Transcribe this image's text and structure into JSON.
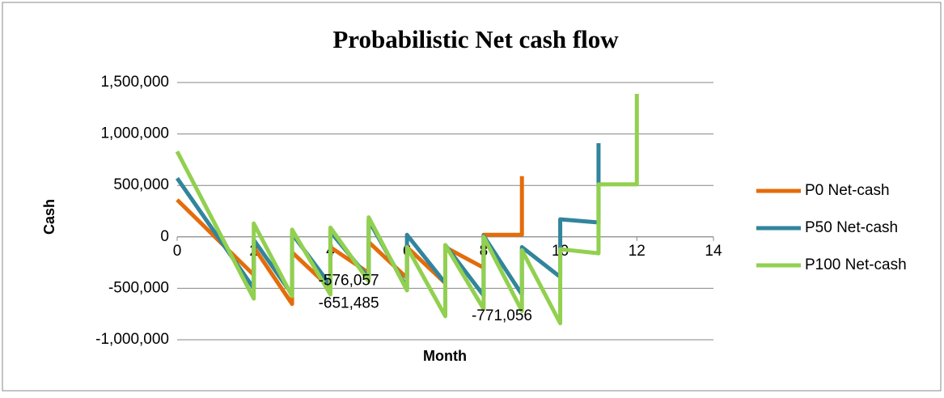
{
  "chart_data": {
    "type": "line",
    "title": "Probabilistic Net cash flow",
    "x_label": "Month",
    "y_label": "Cash",
    "xlim": [
      0,
      14
    ],
    "xticks": [
      0,
      2,
      4,
      6,
      8,
      10,
      12,
      14
    ],
    "ylim": [
      -1000000,
      1500000
    ],
    "yticks": [
      {
        "value": -1000000,
        "label": "-1,000,000"
      },
      {
        "value": -500000,
        "label": "-500,000"
      },
      0,
      {
        "value": 500000,
        "label": "500,000"
      },
      {
        "value": 1000000,
        "label": "1,000,000"
      },
      {
        "value": 1500000,
        "label": "1,500,000"
      }
    ],
    "grid": true,
    "legend": "right",
    "series": [
      {
        "name": "P0 Net-cash",
        "color": "#e46c0a",
        "x": [
          0,
          2,
          2,
          3,
          3,
          4,
          4,
          5,
          5,
          6,
          6,
          7,
          7,
          8,
          8,
          9,
          9
        ],
        "values": [
          360000,
          -370000,
          -100000,
          -651485,
          -150000,
          -500000,
          -100000,
          -350000,
          -50000,
          -400000,
          -100000,
          -450000,
          -100000,
          -300000,
          20000,
          20000,
          590000
        ],
        "value_labels": [
          null,
          null,
          null,
          "-651,485",
          null,
          null,
          null,
          null,
          null,
          null,
          null,
          null,
          null,
          null,
          null,
          null,
          null
        ]
      },
      {
        "name": "P50 Net-cash",
        "color": "#31859c",
        "x": [
          0,
          2,
          2,
          3,
          3,
          4,
          4,
          5,
          5,
          6,
          6,
          7,
          7,
          8,
          8,
          9,
          9,
          10,
          10,
          11,
          11
        ],
        "values": [
          570000,
          -500000,
          -30000,
          -560000,
          30000,
          -470000,
          50000,
          -400000,
          160000,
          -500000,
          20000,
          -450000,
          -80000,
          -570000,
          10000,
          -560000,
          -100000,
          -390000,
          170000,
          140000,
          910000
        ]
      },
      {
        "name": "P100 Net-cash",
        "color": "#92d050",
        "x": [
          0,
          2,
          2,
          3,
          3,
          4,
          4,
          5,
          5,
          6,
          6,
          7,
          7,
          8,
          8,
          9,
          9,
          10,
          10,
          11,
          11,
          12,
          12
        ],
        "values": [
          830000,
          -600000,
          130000,
          -576057,
          70000,
          -560000,
          90000,
          -430000,
          190000,
          -520000,
          -100000,
          -771056,
          -80000,
          -700000,
          0,
          -720000,
          -130000,
          -840000,
          -120000,
          -160000,
          510000,
          510000,
          1390000
        ],
        "value_labels": [
          null,
          null,
          null,
          "-576,057",
          null,
          null,
          null,
          null,
          null,
          null,
          null,
          "-771,056",
          null,
          null,
          null,
          null,
          null,
          null,
          null,
          null,
          null,
          null,
          null
        ]
      }
    ]
  }
}
